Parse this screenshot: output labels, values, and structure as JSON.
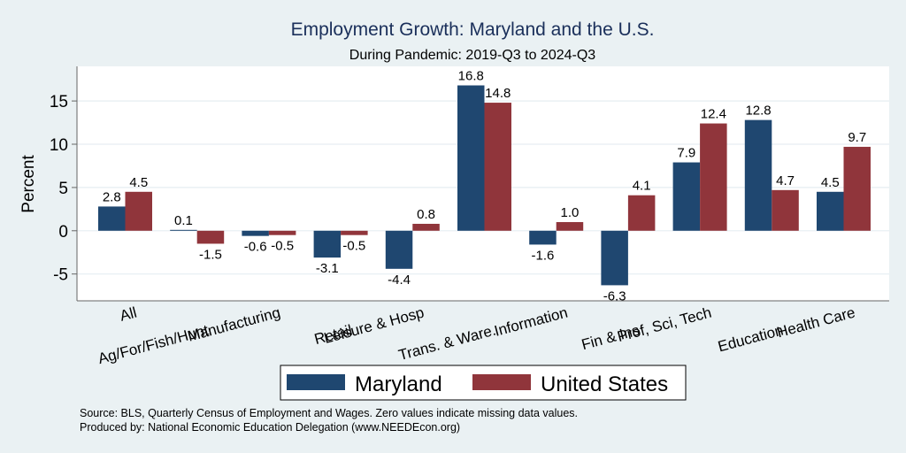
{
  "chart_data": {
    "type": "bar",
    "title": "Employment Growth: Maryland and the U.S.",
    "subtitle": "During Pandemic: 2019-Q3 to 2024-Q3",
    "xlabel": "",
    "ylabel": "Percent",
    "ylim": [
      -8.1,
      19.0
    ],
    "yticks": [
      -5,
      0,
      5,
      10,
      15
    ],
    "ytick_labels": [
      "-5",
      "0",
      "5",
      "10",
      "15"
    ],
    "grid": true,
    "categories": [
      "All",
      "Ag/For/Fish/Hunt",
      "Manufacturing",
      "Retail",
      "Leisure & Hosp",
      "Trans. & Ware.",
      "Information",
      "Fin & Ins",
      "Prof, Sci, Tech",
      "Education",
      "Health Care"
    ],
    "series": [
      {
        "name": "Maryland",
        "color": "#1f4770",
        "values": [
          2.8,
          0.1,
          -0.6,
          -3.1,
          -4.4,
          16.8,
          -1.6,
          -6.3,
          7.9,
          12.8,
          4.5
        ],
        "labels": [
          "2.8",
          "0.1",
          "-0.6",
          "-3.1",
          "-4.4",
          "16.8",
          "-1.6",
          "-6.3",
          "7.9",
          "12.8",
          "4.5"
        ]
      },
      {
        "name": "United States",
        "color": "#90353b",
        "values": [
          4.5,
          -1.5,
          -0.5,
          -0.5,
          0.8,
          14.8,
          1.0,
          4.1,
          12.4,
          4.7,
          9.7
        ],
        "labels": [
          "4.5",
          "-1.5",
          "-0.5",
          "-0.5",
          "0.8",
          "14.8",
          "1.0",
          "4.1",
          "12.4",
          "4.7",
          "9.7"
        ]
      }
    ],
    "legend": {
      "placement": "bottom",
      "entries": [
        "Maryland",
        "United States"
      ]
    },
    "notes": [
      "Source: BLS, Quarterly Census of Employment and Wages. Zero values indicate missing data values.",
      "Produced by: National Economic Education Delegation (www.NEEDEcon.org)"
    ]
  }
}
